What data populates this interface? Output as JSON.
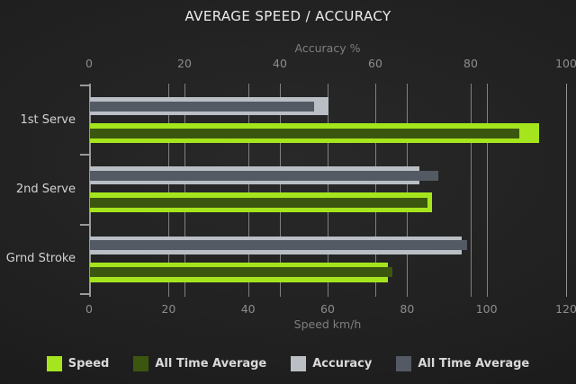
{
  "title": "AVERAGE SPEED / ACCURACY",
  "chart_data": {
    "type": "bar",
    "orientation": "horizontal",
    "title": "AVERAGE SPEED / ACCURACY",
    "categories": [
      "1st Serve",
      "2nd Serve",
      "Grnd Stroke"
    ],
    "series": [
      {
        "name": "Speed",
        "axis": "bottom",
        "row": "speed",
        "role": "base",
        "color": "#a5e51e",
        "values": [
          113,
          86,
          75
        ]
      },
      {
        "name": "All Time Average",
        "axis": "bottom",
        "row": "speed",
        "role": "overlay",
        "color": "#3b570f",
        "values": [
          108,
          85,
          76
        ]
      },
      {
        "name": "Accuracy",
        "axis": "top",
        "row": "accuracy",
        "role": "base",
        "color": "#b9bfc4",
        "values": [
          50,
          69,
          78
        ]
      },
      {
        "name": "All Time Average",
        "axis": "top",
        "row": "accuracy",
        "role": "overlay",
        "color": "#535a63",
        "values": [
          47,
          73,
          79
        ]
      }
    ],
    "axes": {
      "top": {
        "label": "Accuracy %",
        "min": 0,
        "max": 100,
        "ticks": [
          0,
          20,
          40,
          60,
          80,
          100
        ]
      },
      "bottom": {
        "label": "Speed km/h",
        "min": 0,
        "max": 120,
        "ticks": [
          0,
          20,
          40,
          60,
          80,
          100,
          120
        ]
      }
    },
    "legend": [
      "Speed",
      "All Time Average",
      "Accuracy",
      "All Time Average"
    ],
    "legend_position": "bottom",
    "grid": true,
    "colors": {
      "background": "#1f1f1f",
      "gridline": "#989898",
      "tick_text": "#8d8d8d",
      "axis_title_text": "#7f7f7f",
      "category_text": "#d2d2d2",
      "title_text": "#ececec",
      "legend_text": "#d9d9d9"
    }
  }
}
